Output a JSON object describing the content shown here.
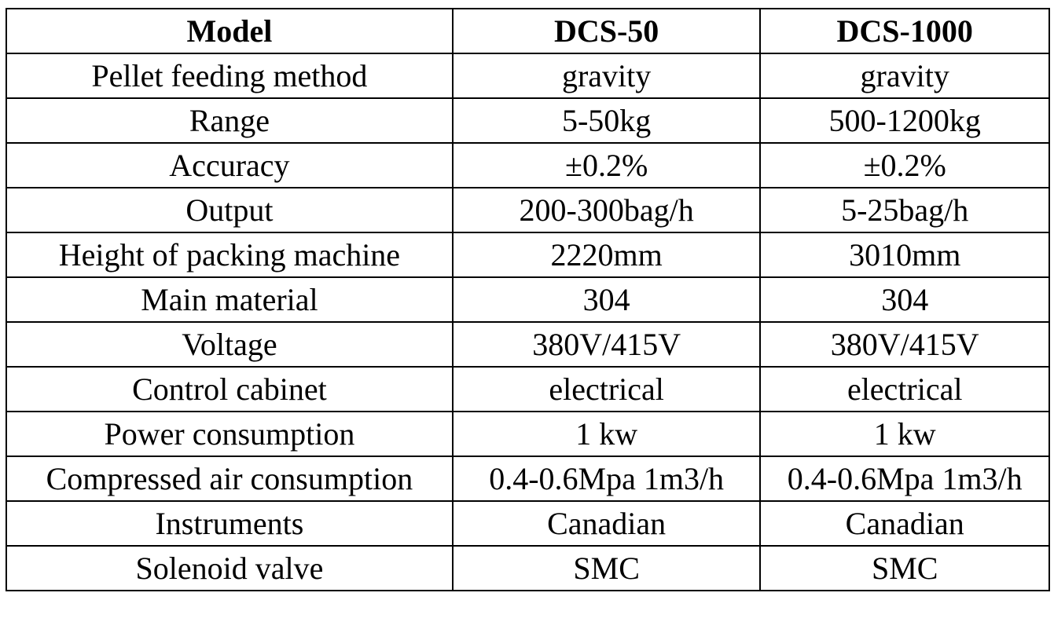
{
  "table": {
    "headers": [
      "Model",
      "DCS-50",
      "DCS-1000"
    ],
    "rows": [
      [
        "Pellet feeding method",
        "gravity",
        "gravity"
      ],
      [
        "Range",
        "5-50kg",
        "500-1200kg"
      ],
      [
        "Accuracy",
        "±0.2%",
        "±0.2%"
      ],
      [
        "Output",
        "200-300bag/h",
        "5-25bag/h"
      ],
      [
        "Height of packing machine",
        "2220mm",
        "3010mm"
      ],
      [
        "Main material",
        "304",
        "304"
      ],
      [
        "Voltage",
        "380V/415V",
        "380V/415V"
      ],
      [
        "Control cabinet",
        "electrical",
        "electrical"
      ],
      [
        "Power consumption",
        "1 kw",
        "1 kw"
      ],
      [
        "Compressed air consumption",
        "0.4-0.6Mpa 1m3/h",
        "0.4-0.6Mpa 1m3/h"
      ],
      [
        "Instruments",
        "Canadian",
        "Canadian"
      ],
      [
        "Solenoid valve",
        "SMC",
        "SMC"
      ]
    ]
  }
}
